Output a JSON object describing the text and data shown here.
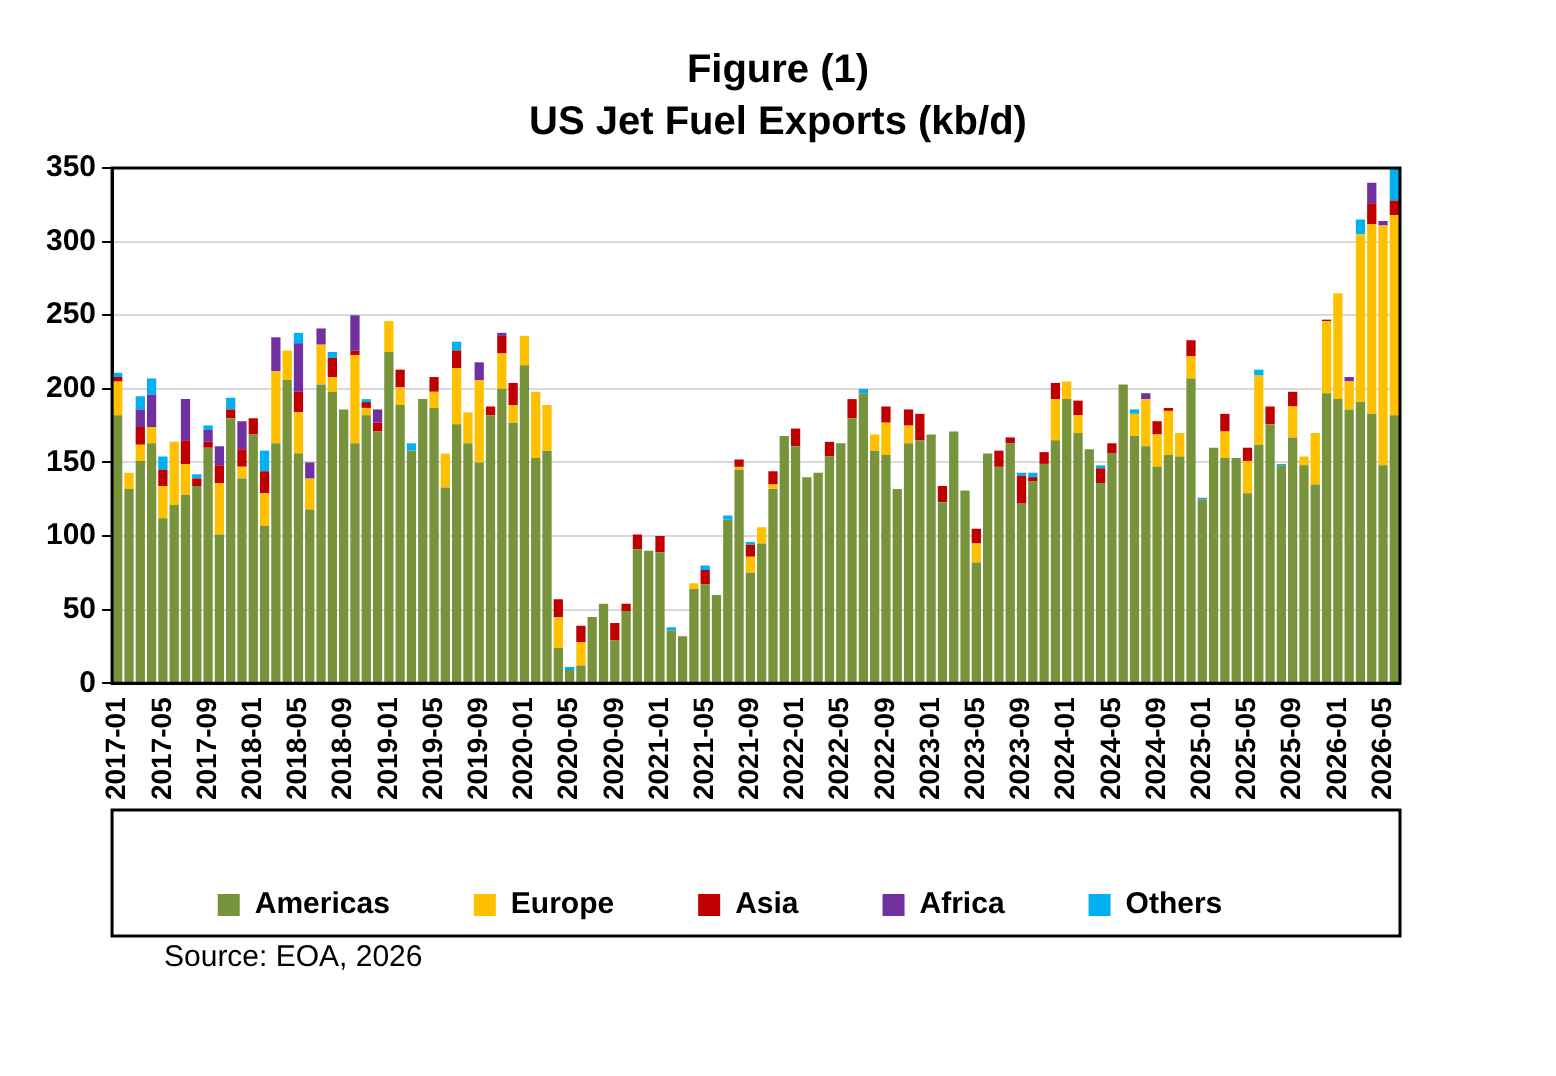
{
  "chart_data": {
    "type": "bar",
    "title": "Figure (1)",
    "subtitle": "US Jet Fuel Exports (kb/d)",
    "stacked": true,
    "grid": "y",
    "legend": "bottom",
    "ylim": [
      0,
      350
    ],
    "yticks": [
      0,
      50,
      100,
      150,
      200,
      250,
      300,
      350
    ],
    "annotations": [
      "Source: EOA, 2026"
    ],
    "categories": [
      "2017-01",
      null,
      null,
      null,
      "2017-05",
      null,
      null,
      null,
      "2017-09",
      null,
      null,
      null,
      "2018-01",
      null,
      null,
      null,
      "2018-05",
      null,
      null,
      null,
      "2018-09",
      null,
      null,
      null,
      "2019-01",
      null,
      null,
      null,
      "2019-05",
      null,
      null,
      null,
      "2019-09",
      null,
      null,
      null,
      "2020-01",
      null,
      null,
      null,
      "2020-05",
      null,
      null,
      null,
      "2020-09",
      null,
      null,
      null,
      "2021-01",
      null,
      null,
      null,
      "2021-05",
      null,
      null,
      null,
      "2021-09",
      null,
      null,
      null,
      "2022-01",
      null,
      null,
      null,
      "2022-05",
      null,
      null,
      null,
      "2022-09",
      null,
      null,
      null,
      "2023-01",
      null,
      null,
      null,
      "2023-05",
      null,
      null,
      null,
      "2023-09",
      null,
      null,
      null,
      "2024-01",
      null,
      null,
      null,
      "2024-05",
      null,
      null,
      null,
      "2024-09",
      null,
      null,
      null,
      "2025-01",
      null,
      null,
      null,
      "2025-05",
      null,
      null,
      null,
      "2025-09",
      null,
      null,
      null,
      "2026-01",
      null,
      null,
      null,
      "2026-05",
      null
    ],
    "series": [
      {
        "name": "Americas",
        "color": "#77933c",
        "values": [
          182,
          132,
          151,
          163,
          112,
          121,
          128,
          134,
          160,
          101,
          180,
          139,
          169,
          107,
          163,
          206,
          156,
          118,
          203,
          198,
          186,
          163,
          182,
          171,
          225,
          189,
          158,
          193,
          187,
          133,
          176,
          163,
          150,
          182,
          200,
          177,
          216,
          153,
          158,
          24,
          9,
          12,
          45,
          54,
          29,
          49,
          91,
          90,
          89,
          36,
          32,
          64,
          67,
          60,
          111,
          145,
          75,
          95,
          132,
          168,
          161,
          140,
          143,
          154,
          163,
          180,
          197,
          158,
          155,
          132,
          163,
          165,
          169,
          123,
          171,
          131,
          82,
          156,
          147,
          163,
          122,
          137,
          149,
          165,
          193,
          170,
          159,
          136,
          156,
          203,
          168,
          161,
          147,
          155,
          154,
          207,
          125,
          160,
          153,
          153,
          129,
          162,
          176,
          148,
          167,
          148,
          135,
          197,
          193,
          186,
          191,
          183,
          148,
          182
        ]
      },
      {
        "name": "Europe",
        "color": "#ffc000",
        "values": [
          23,
          11,
          11,
          11,
          22,
          43,
          21,
          0,
          0,
          35,
          0,
          8,
          0,
          22,
          49,
          20,
          28,
          21,
          27,
          10,
          0,
          60,
          5,
          0,
          21,
          12,
          0,
          0,
          11,
          23,
          38,
          21,
          56,
          0,
          24,
          12,
          20,
          45,
          31,
          21,
          0,
          16,
          0,
          0,
          0,
          0,
          0,
          0,
          0,
          0,
          0,
          4,
          0,
          0,
          0,
          2,
          11,
          11,
          3,
          0,
          0,
          0,
          0,
          0,
          0,
          0,
          0,
          11,
          22,
          0,
          12,
          0,
          0,
          0,
          0,
          0,
          13,
          0,
          0,
          0,
          0,
          0,
          0,
          28,
          12,
          12,
          0,
          0,
          0,
          0,
          15,
          32,
          22,
          30,
          16,
          15,
          0,
          0,
          18,
          0,
          22,
          47,
          0,
          0,
          21,
          6,
          35,
          49,
          72,
          19,
          114,
          129,
          163,
          136
        ]
      },
      {
        "name": "Asia",
        "color": "#c00000",
        "values": [
          3,
          0,
          12,
          0,
          11,
          0,
          16,
          5,
          4,
          12,
          6,
          12,
          11,
          15,
          0,
          0,
          14,
          0,
          0,
          13,
          0,
          3,
          4,
          6,
          0,
          12,
          0,
          0,
          10,
          0,
          12,
          0,
          0,
          6,
          12,
          15,
          0,
          0,
          0,
          12,
          0,
          11,
          0,
          0,
          12,
          5,
          10,
          0,
          11,
          0,
          0,
          0,
          10,
          0,
          0,
          5,
          8,
          0,
          9,
          0,
          12,
          0,
          0,
          10,
          0,
          13,
          0,
          0,
          11,
          0,
          11,
          18,
          0,
          11,
          0,
          0,
          10,
          0,
          11,
          4,
          19,
          3,
          8,
          11,
          0,
          10,
          0,
          10,
          7,
          0,
          0,
          0,
          9,
          2,
          0,
          11,
          0,
          0,
          12,
          0,
          9,
          0,
          12,
          0,
          10,
          0,
          0,
          1,
          0,
          0,
          0,
          14,
          0,
          10
        ]
      },
      {
        "name": "Africa",
        "color": "#7030a0",
        "values": [
          0,
          0,
          12,
          22,
          0,
          0,
          28,
          0,
          8,
          13,
          0,
          19,
          0,
          0,
          23,
          0,
          33,
          11,
          11,
          0,
          0,
          24,
          0,
          9,
          0,
          0,
          0,
          0,
          0,
          0,
          0,
          0,
          12,
          0,
          2,
          0,
          0,
          0,
          0,
          0,
          0,
          0,
          0,
          0,
          0,
          0,
          0,
          0,
          0,
          0,
          0,
          0,
          0,
          0,
          0,
          0,
          0,
          0,
          0,
          0,
          0,
          0,
          0,
          0,
          0,
          0,
          0,
          0,
          0,
          0,
          0,
          0,
          0,
          0,
          0,
          0,
          0,
          0,
          0,
          0,
          0,
          0,
          0,
          0,
          0,
          0,
          0,
          0,
          0,
          0,
          0,
          4,
          0,
          0,
          0,
          0,
          0,
          0,
          0,
          0,
          0,
          0,
          0,
          0,
          0,
          0,
          0,
          0,
          0,
          3,
          0,
          14,
          3,
          0
        ]
      },
      {
        "name": "Others",
        "color": "#00b0f0",
        "values": [
          3,
          0,
          9,
          11,
          9,
          0,
          0,
          3,
          3,
          0,
          8,
          0,
          0,
          14,
          0,
          0,
          7,
          0,
          0,
          4,
          0,
          0,
          2,
          0,
          0,
          0,
          5,
          0,
          0,
          0,
          6,
          0,
          0,
          0,
          0,
          0,
          0,
          0,
          0,
          0,
          2,
          0,
          0,
          0,
          0,
          0,
          0,
          0,
          0,
          2,
          0,
          0,
          3,
          0,
          3,
          0,
          2,
          0,
          0,
          0,
          0,
          0,
          0,
          0,
          0,
          0,
          3,
          0,
          0,
          0,
          0,
          0,
          0,
          0,
          0,
          0,
          0,
          0,
          0,
          0,
          2,
          3,
          0,
          0,
          0,
          0,
          0,
          2,
          0,
          0,
          3,
          0,
          0,
          0,
          0,
          0,
          1,
          0,
          0,
          0,
          0,
          4,
          0,
          1,
          0,
          0,
          0,
          0,
          0,
          0,
          10,
          0,
          0,
          22
        ]
      }
    ]
  }
}
